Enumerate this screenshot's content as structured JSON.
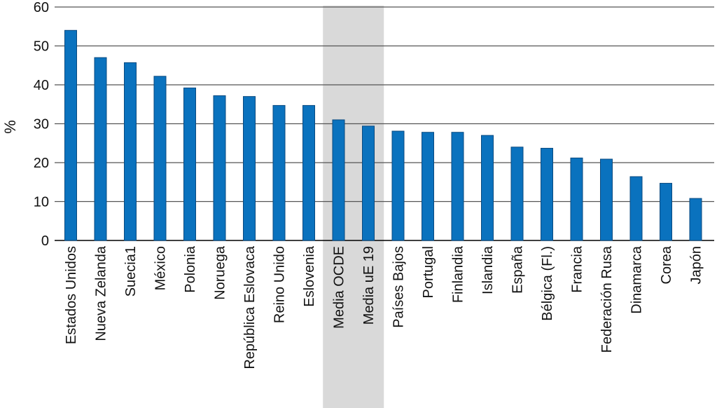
{
  "chart_data": {
    "type": "bar",
    "ylabel": "%",
    "ylim": [
      0,
      60
    ],
    "yticks": [
      "0",
      "10",
      "20",
      "30",
      "40",
      "50",
      "60"
    ],
    "grid": true,
    "highlighted_categories": [
      "Media OCDE",
      "Media uE 19"
    ],
    "categories": [
      "Estados Unidos",
      "Nueva Zelanda",
      "Suecia1",
      "México",
      "Polonia",
      "Noruega",
      "República Eslovaca",
      "Reino Unido",
      "Eslovenia",
      "Media OCDE",
      "Media uE 19",
      "Países Bajos",
      "Portugal",
      "Finlandia",
      "Islandia",
      "España",
      "Bélgica (Fl.)",
      "Francia",
      "Federación Rusa",
      "Dinamarca",
      "Corea",
      "Japón"
    ],
    "values": [
      54,
      47,
      45.7,
      42.2,
      39.2,
      37.2,
      37,
      34.7,
      34.7,
      31,
      29.4,
      28.1,
      27.8,
      27.8,
      27,
      24,
      23.7,
      21.2,
      20.9,
      16.4,
      14.7,
      10.8
    ]
  },
  "colors": {
    "bar": "#0a72be",
    "bar_edge": "#0a4a80",
    "highlight_band": "#d9d9d9",
    "grid": "#555555",
    "axis": "#000000"
  }
}
